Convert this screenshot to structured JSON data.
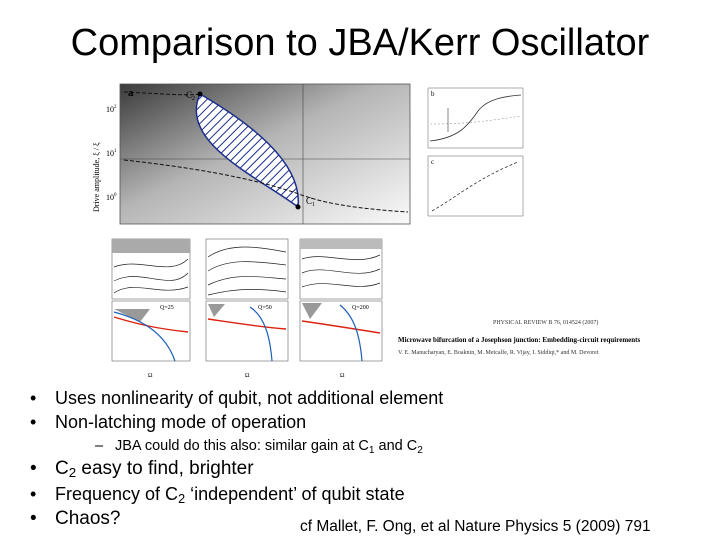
{
  "slide": {
    "title": "Comparison to JBA/Kerr Oscillator",
    "bullets": [
      {
        "text": "Uses nonlinearity of qubit, not additional element"
      },
      {
        "text": "Non-latching mode of operation"
      }
    ],
    "sub_bullet": {
      "prefix": "JBA could do this also: similar gain at C",
      "s1": "1",
      "mid": " and C",
      "s2": "2"
    },
    "bullets2": [
      {
        "pre": "C",
        "sub": "2",
        "post": " easy to find, brighter"
      },
      {
        "pre": "Frequency of C",
        "sub": "2",
        "post": " ‘independent’ of qubit state"
      },
      {
        "pre": "Chaos?",
        "sub": "",
        "post": ""
      }
    ],
    "citation": "cf Mallet, F. Ong, et al Nature Physics 5 (2009) 791"
  },
  "figure_main": {
    "panel_letter": "a",
    "y_axis_label": "Drive amplitude, ξ / ξ",
    "y_ticks": [
      "10",
      "10",
      "10"
    ],
    "y_tick_exponents": [
      "2",
      "1",
      "0"
    ],
    "point_c2": "C",
    "point_c1": "C"
  },
  "figure_side": {
    "panel_b": "b",
    "panel_c": "c"
  },
  "figure_bottom": {
    "panel_labels": [
      "Q=25",
      "Q=50",
      "Q=200"
    ],
    "axis_labels": [
      "Ω",
      "Ω",
      "Ω"
    ]
  },
  "paper_ref": {
    "journal_line": "PHYSICAL REVIEW B 76, 014524 (2007)",
    "paper_title": "Microwave bifurcation of a Josephson junction: Embedding-circuit requirements",
    "authors": "V. E. Manucharyan, E. Boaknin, M. Metcalfe, R. Vijay, I. Siddiqi,* and M. Devoret"
  }
}
